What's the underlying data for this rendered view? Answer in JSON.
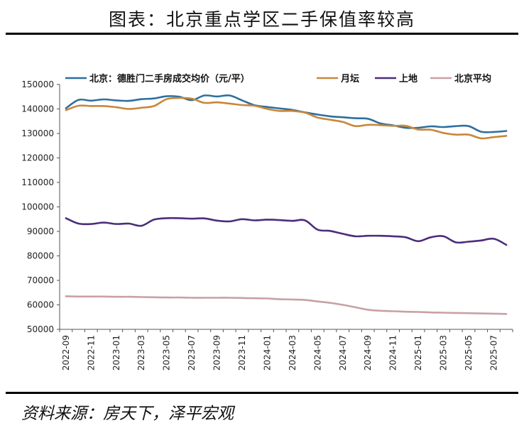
{
  "page": {
    "title": "图表：北京重点学区二手保值率较高",
    "source": "资料来源：房天下，泽平宏观"
  },
  "chart_data": {
    "type": "line",
    "title": "",
    "xlabel": "",
    "ylabel": "",
    "ylim": [
      50000,
      150000
    ],
    "yticks": [
      50000,
      60000,
      70000,
      80000,
      90000,
      100000,
      110000,
      120000,
      130000,
      140000,
      150000
    ],
    "x": [
      "2022-09",
      "2022-10",
      "2022-11",
      "2022-12",
      "2023-01",
      "2023-02",
      "2023-03",
      "2023-04",
      "2023-05",
      "2023-06",
      "2023-07",
      "2023-08",
      "2023-09",
      "2023-10",
      "2023-11",
      "2023-12",
      "2024-01",
      "2024-02",
      "2024-03",
      "2024-04",
      "2024-05",
      "2024-06",
      "2024-07",
      "2024-08",
      "2024-09",
      "2024-10",
      "2024-11",
      "2024-12",
      "2025-01",
      "2025-02",
      "2025-03",
      "2025-04",
      "2025-05",
      "2025-06",
      "2025-07",
      "2025-08"
    ],
    "xtick_labels": [
      "2022-09",
      "2022-11",
      "2023-01",
      "2023-03",
      "2023-05",
      "2023-07",
      "2023-09",
      "2023-11",
      "2024-01",
      "2024-03",
      "2024-05",
      "2024-07",
      "2024-09",
      "2024-11",
      "2025-01",
      "2025-03",
      "2025-05",
      "2025-07"
    ],
    "legend_position": "top",
    "series": [
      {
        "name": "北京：德胜门二手房成交均价（元/平）",
        "color": "#2e6f9e",
        "values": [
          140300,
          143700,
          143400,
          143900,
          143500,
          143300,
          144000,
          144300,
          145200,
          145000,
          143600,
          145500,
          145100,
          145500,
          143500,
          141500,
          140800,
          140200,
          139600,
          138600,
          137700,
          137000,
          136600,
          136200,
          136000,
          134100,
          133300,
          132300,
          132300,
          132900,
          132600,
          133000,
          133000,
          130700,
          130600,
          131000
        ]
      },
      {
        "name": "月坛",
        "color": "#c8873a",
        "values": [
          139500,
          141300,
          141200,
          141200,
          140700,
          140000,
          140500,
          141200,
          144000,
          144500,
          144200,
          142500,
          142700,
          142200,
          141600,
          141300,
          140000,
          139200,
          139200,
          138500,
          136500,
          135600,
          134700,
          133000,
          133500,
          133400,
          133100,
          133100,
          131600,
          131500,
          130200,
          129500,
          129500,
          128000,
          128500,
          129000
        ]
      },
      {
        "name": "上地",
        "color": "#4c2d7a",
        "values": [
          95400,
          93200,
          93000,
          93600,
          93000,
          93200,
          92300,
          94800,
          95400,
          95400,
          95200,
          95300,
          94400,
          94100,
          95000,
          94500,
          94800,
          94600,
          94300,
          94500,
          90700,
          90200,
          89000,
          88000,
          88200,
          88200,
          88000,
          87600,
          86000,
          87600,
          88000,
          85500,
          85800,
          86300,
          87000,
          84500
        ]
      },
      {
        "name": "北京平均",
        "color": "#c9a0a6",
        "values": [
          63500,
          63400,
          63400,
          63400,
          63300,
          63300,
          63200,
          63100,
          63000,
          63000,
          62900,
          62900,
          62900,
          62900,
          62800,
          62700,
          62600,
          62300,
          62200,
          62000,
          61400,
          60800,
          60000,
          59000,
          58000,
          57600,
          57400,
          57200,
          57100,
          56900,
          56800,
          56700,
          56600,
          56500,
          56400,
          56300
        ]
      }
    ]
  }
}
